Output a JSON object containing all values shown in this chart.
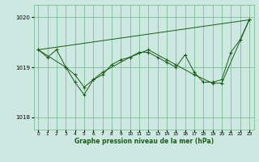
{
  "title": "Graphe pression niveau de la mer (hPa)",
  "bg_color": "#cde8e0",
  "line_color": "#1a5c1a",
  "grid_color": "#6ab88a",
  "xlim": [
    -0.5,
    23.5
  ],
  "ylim": [
    1017.75,
    1020.25
  ],
  "yticks": [
    1018,
    1019,
    1020
  ],
  "xticks": [
    0,
    1,
    2,
    3,
    4,
    5,
    6,
    7,
    8,
    9,
    10,
    11,
    12,
    13,
    14,
    15,
    16,
    17,
    18,
    19,
    20,
    21,
    22,
    23
  ],
  "series1_x": [
    0,
    1,
    2,
    3,
    4,
    5,
    6,
    7,
    8,
    9,
    10,
    11,
    12,
    13,
    14,
    15,
    16,
    17,
    18,
    19,
    20,
    21,
    22,
    23
  ],
  "series1_y": [
    1019.35,
    1019.2,
    1019.35,
    1019.0,
    1018.85,
    1018.6,
    1018.75,
    1018.85,
    1019.05,
    1019.15,
    1019.2,
    1019.3,
    1019.3,
    1019.2,
    1019.1,
    1019.0,
    1019.25,
    1018.9,
    1018.7,
    1018.7,
    1018.75,
    1019.3,
    1019.55,
    1019.95
  ],
  "series2_x": [
    0,
    3,
    4,
    5,
    6,
    7,
    10,
    12,
    14,
    15,
    17,
    19,
    20,
    23
  ],
  "series2_y": [
    1019.35,
    1019.0,
    1018.7,
    1018.45,
    1018.75,
    1018.9,
    1019.2,
    1019.35,
    1019.15,
    1019.05,
    1018.85,
    1018.68,
    1018.68,
    1019.95
  ],
  "series3_x": [
    0,
    23
  ],
  "series3_y": [
    1019.35,
    1019.95
  ]
}
